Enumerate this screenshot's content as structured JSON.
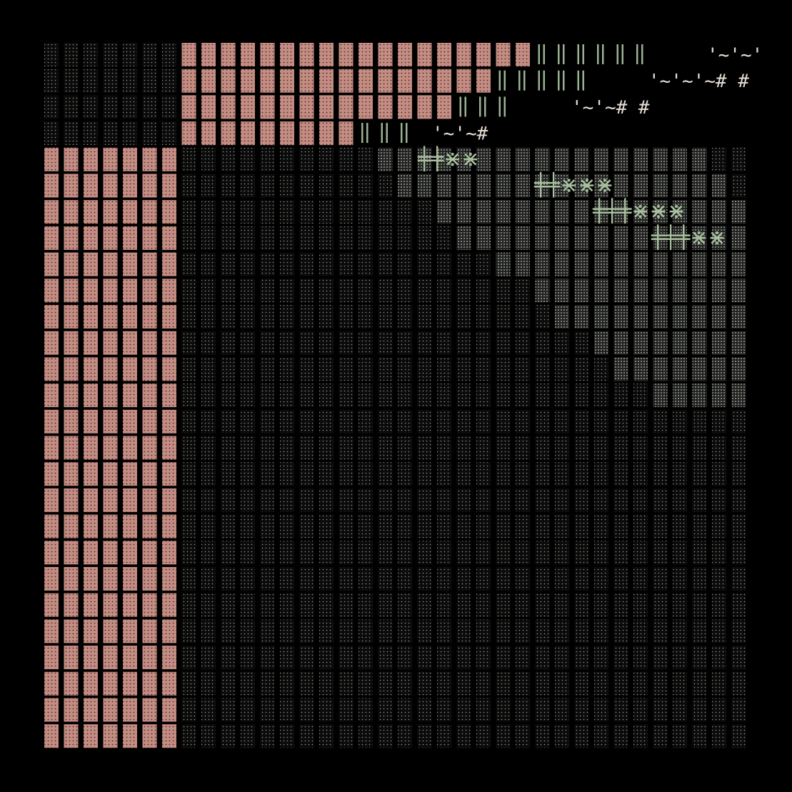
{
  "glyph_rows": [
    "'~'~'",
    "'~'~'~# #",
    "'~'~# #",
    "'~'~#"
  ],
  "symbol_rows": [
    "╪╪⋇⋇",
    "╪╪⋇⋇⋇",
    "╪╪╪⋇⋇⋇",
    "╪╪╪⋇⋇"
  ]
}
